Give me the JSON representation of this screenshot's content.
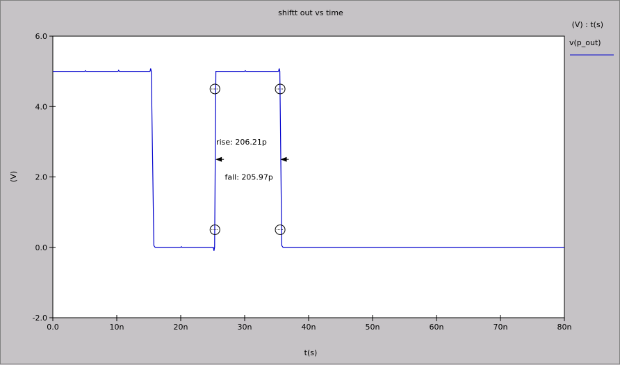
{
  "chart_data": {
    "type": "line",
    "title": "shiftt out vs time",
    "xlabel": "t(s)",
    "ylabel": "(V)",
    "xlim": [
      0,
      80
    ],
    "ylim": [
      -2,
      6
    ],
    "x_ticks": [
      0,
      10,
      20,
      30,
      40,
      50,
      60,
      70,
      80
    ],
    "x_tick_labels": [
      "0.0",
      "10n",
      "20n",
      "30n",
      "40n",
      "50n",
      "60n",
      "70n",
      "80n"
    ],
    "y_ticks": [
      -2,
      0,
      2,
      4,
      6
    ],
    "y_tick_labels": [
      "-2.0",
      "0.0",
      "2.0",
      "4.0",
      "6.0"
    ],
    "grid": false,
    "legend_header": "(V) : t(s)",
    "legend_position": "top-right",
    "series": [
      {
        "name": "v(p_out)",
        "color": "#0000cc",
        "x": [
          0,
          5.0,
          5.1,
          5.2,
          10.2,
          10.3,
          10.4,
          15.2,
          15.3,
          15.4,
          15.8,
          16.0,
          20.0,
          20.1,
          20.2,
          25.1,
          25.2,
          25.3,
          25.5,
          25.7,
          30.0,
          30.1,
          30.2,
          35.3,
          35.4,
          35.5,
          35.8,
          36.0,
          80
        ],
        "y": [
          5.0,
          5.0,
          5.02,
          5.0,
          5.0,
          5.03,
          5.0,
          5.0,
          5.08,
          5.0,
          0.05,
          0.0,
          0.0,
          0.02,
          0.0,
          0.0,
          -0.1,
          0.0,
          5.0,
          5.0,
          5.0,
          5.02,
          5.0,
          5.0,
          5.08,
          5.0,
          0.05,
          0.0,
          0.0
        ]
      }
    ],
    "markers": [
      {
        "x": 25.35,
        "y": 4.5
      },
      {
        "x": 25.35,
        "y": 0.5
      },
      {
        "x": 35.55,
        "y": 4.5
      },
      {
        "x": 35.55,
        "y": 0.5
      }
    ],
    "annotations": [
      {
        "text": "rise: 206.21p",
        "arrow_x": 25.45,
        "arrow_y": 2.5,
        "direction": "left"
      },
      {
        "text": "fall: 205.97p",
        "arrow_x": 35.6,
        "arrow_y": 2.5,
        "direction": "right"
      }
    ]
  }
}
